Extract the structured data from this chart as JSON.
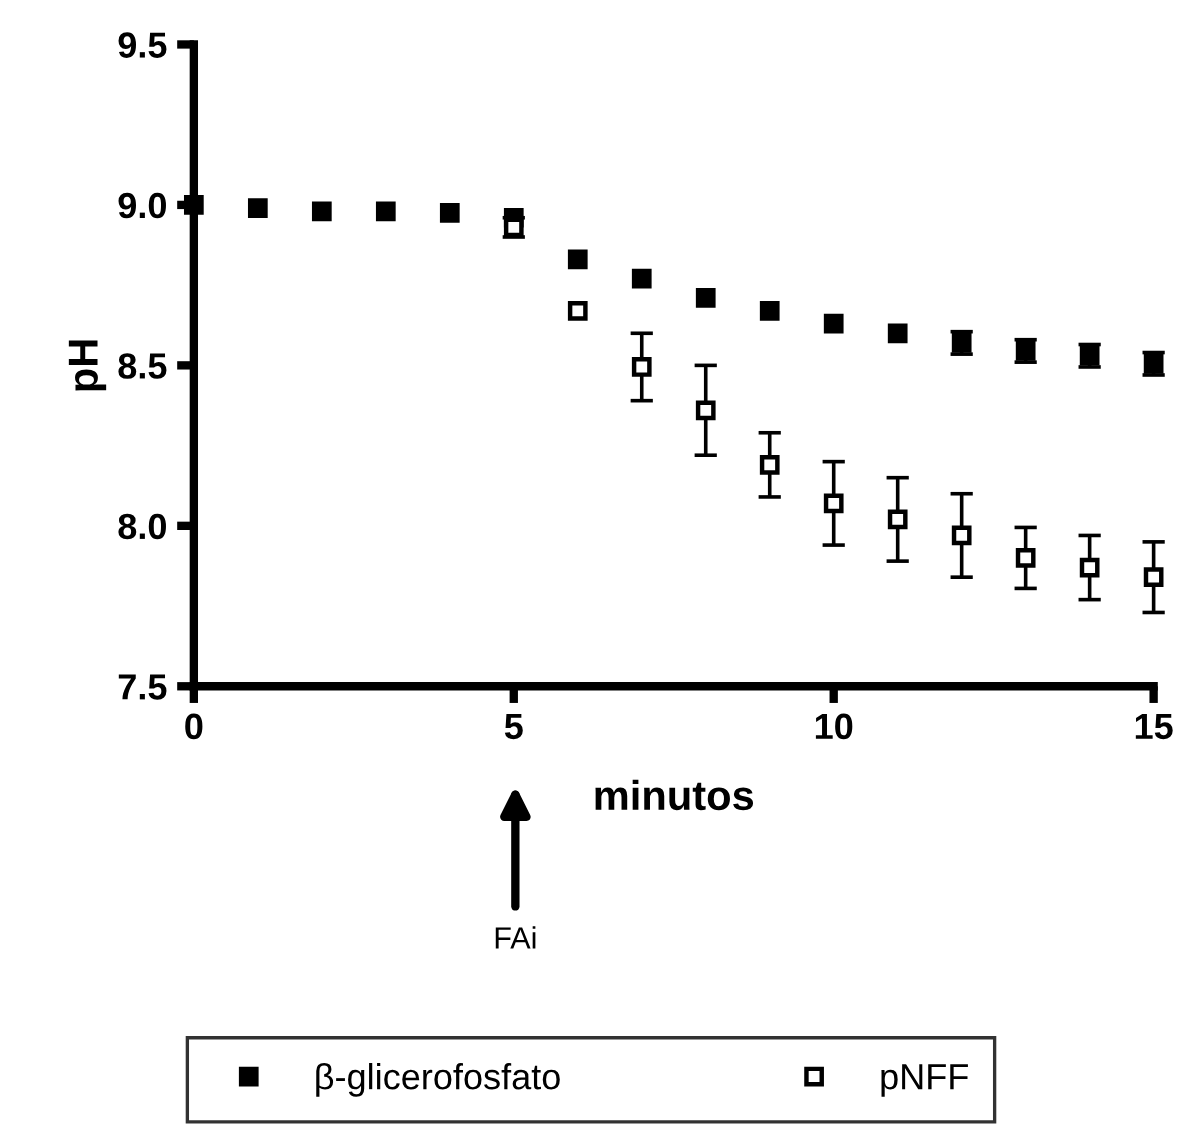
{
  "chart_data": {
    "type": "scatter",
    "xlabel": "minutos",
    "ylabel": "pH",
    "x": [
      0,
      1,
      2,
      3,
      4,
      5,
      6,
      7,
      8,
      9,
      10,
      11,
      12,
      13,
      14,
      15
    ],
    "series": [
      {
        "name": "β-glicerofosfato",
        "color": "#000000",
        "marker": "square",
        "values": [
          9.0,
          8.99,
          8.98,
          8.98,
          8.975,
          8.96,
          8.83,
          8.77,
          8.71,
          8.67,
          8.63,
          8.6,
          8.57,
          8.545,
          8.53,
          8.505
        ],
        "errors": [
          null,
          null,
          null,
          null,
          null,
          null,
          null,
          null,
          null,
          null,
          null,
          null,
          0.035,
          0.035,
          0.035,
          0.035
        ]
      },
      {
        "name": "pNFF",
        "color": "#ffffff",
        "marker": "square",
        "values": [
          null,
          null,
          null,
          null,
          null,
          8.93,
          8.67,
          8.495,
          8.36,
          8.19,
          8.07,
          8.02,
          7.97,
          7.9,
          7.87,
          7.84
        ],
        "errors": [
          null,
          null,
          null,
          null,
          null,
          0.03,
          null,
          0.105,
          0.14,
          0.1,
          0.13,
          0.13,
          0.13,
          0.095,
          0.1,
          0.11
        ]
      }
    ],
    "xlim": [
      0,
      15
    ],
    "xticks": [
      0,
      5,
      10,
      15
    ],
    "ylim": [
      7.5,
      9.5
    ],
    "yticks": [
      7.5,
      {
        "value": 8,
        "label": "8.0"
      },
      8.5,
      {
        "value": 9,
        "label": "9.0"
      },
      9.5
    ],
    "legend": "bottom",
    "annotations": [
      "FAi"
    ]
  }
}
